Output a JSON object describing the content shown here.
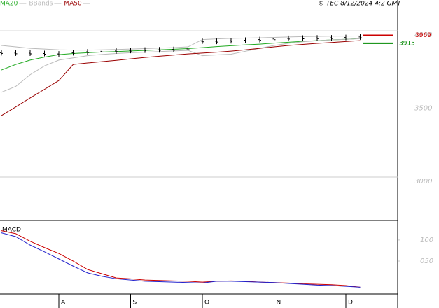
{
  "chart_data": [
    {
      "type": "line",
      "title": "© TEC 8/12/2024 4:2 GMT",
      "values": [
        3850,
        3848,
        3847,
        3845,
        3842,
        3850,
        3856,
        3860,
        3862,
        3866,
        3868,
        3870,
        3872,
        3876,
        3930,
        3928,
        3932,
        3936,
        3940,
        3944,
        3948,
        3950,
        3951,
        3952,
        3954,
        3958
      ],
      "price_color": "#000000",
      "series": [
        {
          "name": "MA20",
          "color": "#22aa22",
          "values": [
            3732,
            3770,
            3800,
            3820,
            3837,
            3845,
            3850,
            3855,
            3858,
            3862,
            3866,
            3870,
            3874,
            3878,
            3885,
            3892,
            3898,
            3904,
            3909,
            3916,
            3922,
            3928,
            3933,
            3938,
            3942,
            3947
          ]
        },
        {
          "name": "BBands",
          "color": "#bbbbbb",
          "values": [
            3900,
            3890,
            3880,
            3875,
            3870,
            3868,
            3868,
            3870,
            3872,
            3875,
            3878,
            3882,
            3885,
            3890,
            3940,
            3945,
            3948,
            3950,
            3952,
            3955,
            3958,
            3960,
            3962,
            3963,
            3964,
            3965
          ],
          "lower": [
            3580,
            3620,
            3700,
            3760,
            3800,
            3815,
            3830,
            3838,
            3845,
            3850,
            3854,
            3858,
            3862,
            3866,
            3830,
            3835,
            3840,
            3860,
            3880,
            3900,
            3915,
            3925,
            3932,
            3938,
            3942,
            3946
          ]
        },
        {
          "name": "MA50",
          "color": "#990000",
          "values": [
            3421,
            3480,
            3541,
            3600,
            3660,
            3770,
            3780,
            3789,
            3798,
            3808,
            3818,
            3826,
            3834,
            3842,
            3848,
            3854,
            3861,
            3870,
            3880,
            3890,
            3900,
            3907,
            3914,
            3920,
            3927,
            3933
          ]
        }
      ],
      "markers": [
        {
          "value": 3969,
          "color": "#cc0000"
        },
        {
          "value": 3915,
          "color": "#008800"
        }
      ],
      "ylim": [
        2703,
        4211
      ],
      "yticks": [
        3000,
        3500,
        4000
      ],
      "grid": true
    },
    {
      "type": "line",
      "title": "MACD",
      "categories": [
        null,
        null,
        null,
        null,
        "A",
        null,
        null,
        null,
        null,
        "S",
        null,
        null,
        null,
        null,
        "O",
        null,
        null,
        null,
        null,
        "N",
        null,
        null,
        null,
        null,
        "D",
        null
      ],
      "series": [
        {
          "color": "#cc0000",
          "values": [
            122,
            115,
            97,
            82,
            68,
            50,
            30,
            20,
            10,
            8,
            5,
            4,
            3,
            2,
            0,
            2,
            3,
            2,
            0,
            -1,
            -2,
            -4,
            -5,
            -6,
            -8,
            -12
          ]
        },
        {
          "color": "#2222cc",
          "values": [
            117,
            108,
            88,
            72,
            55,
            38,
            22,
            14,
            8,
            5,
            2,
            1,
            0,
            -1,
            -2,
            2,
            2,
            1,
            0,
            -1,
            -3,
            -5,
            -7,
            -8,
            -10,
            -12
          ]
        }
      ],
      "ylim": [
        -28,
        143
      ],
      "yticks": [
        {
          "value": 100,
          "label": "100"
        },
        {
          "value": 50,
          "label": "050"
        }
      ]
    }
  ]
}
